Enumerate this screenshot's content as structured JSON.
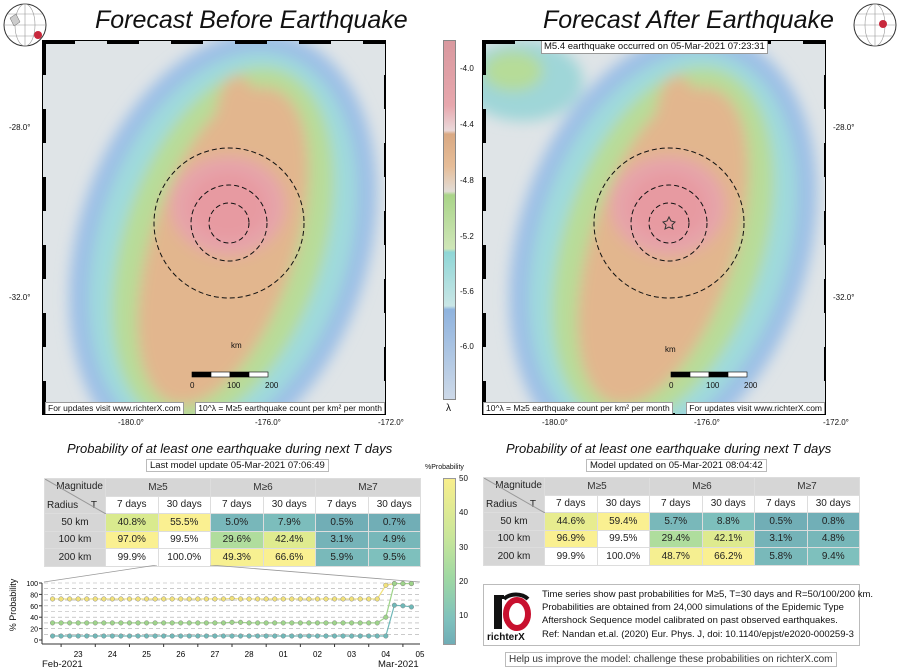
{
  "left_panel": {
    "title": "Forecast Before Earthquake",
    "updates_note": "For updates visit www.richterX.com",
    "units_note": "10^λ = M≥5 earthquake count per km² per month",
    "lat_labels": [
      "-28.0°",
      "-32.0°"
    ],
    "lon_labels": [
      "-180.0°",
      "-176.0°",
      "-172.0°"
    ],
    "scale_unit": "km",
    "scale_ticks": [
      "0",
      "100",
      "200"
    ]
  },
  "right_panel": {
    "title": "Forecast After Earthquake",
    "event_note": "M5.4 earthquake occurred on 05-Mar-2021 07:23:31",
    "updates_note": "For updates visit www.richterX.com",
    "units_note": "10^λ = M≥5 earthquake count per km² per month",
    "lat_labels": [
      "-28.0°",
      "-32.0°"
    ],
    "lon_labels": [
      "-180.0°",
      "-176.0°",
      "-172.0°"
    ],
    "scale_unit": "km",
    "scale_ticks": [
      "0",
      "100",
      "200"
    ]
  },
  "map_colorbar": {
    "ticks": [
      "-4.0",
      "-4.4",
      "-4.8",
      "-5.2",
      "-5.6",
      "-6.0"
    ],
    "label": "λ"
  },
  "prob_colorbar": {
    "label": "%Probability",
    "ticks": [
      "50",
      "40",
      "30",
      "20",
      "10"
    ]
  },
  "left_table": {
    "title": "Probability of at least one earthquake during next T days",
    "update": "Last model update 05-Mar-2021 07:06:49",
    "corner_top": "Magnitude",
    "corner_left": "Radius",
    "corner_right": "T",
    "magnitudes": [
      "M≥5",
      "M≥6",
      "M≥7"
    ],
    "periods": [
      "7 days",
      "30 days",
      "7 days",
      "30 days",
      "7 days",
      "30 days"
    ],
    "rows": [
      {
        "radius": "50 km",
        "values": [
          "40.8%",
          "55.5%",
          "5.0%",
          "7.9%",
          "0.5%",
          "0.7%"
        ]
      },
      {
        "radius": "100 km",
        "values": [
          "97.0%",
          "99.5%",
          "29.6%",
          "42.4%",
          "3.1%",
          "4.9%"
        ]
      },
      {
        "radius": "200 km",
        "values": [
          "99.9%",
          "100.0%",
          "49.3%",
          "66.6%",
          "5.9%",
          "9.5%"
        ]
      }
    ]
  },
  "right_table": {
    "title": "Probability of at least one earthquake during next T days",
    "update": "Model updated on 05-Mar-2021 08:04:42",
    "corner_top": "Magnitude",
    "corner_left": "Radius",
    "corner_right": "T",
    "magnitudes": [
      "M≥5",
      "M≥6",
      "M≥7"
    ],
    "periods": [
      "7 days",
      "30 days",
      "7 days",
      "30 days",
      "7 days",
      "30 days"
    ],
    "rows": [
      {
        "radius": "50 km",
        "values": [
          "44.6%",
          "59.4%",
          "5.7%",
          "8.8%",
          "0.5%",
          "0.8%"
        ]
      },
      {
        "radius": "100 km",
        "values": [
          "96.9%",
          "99.5%",
          "29.4%",
          "42.1%",
          "3.1%",
          "4.8%"
        ]
      },
      {
        "radius": "200 km",
        "values": [
          "99.9%",
          "100.0%",
          "48.7%",
          "66.2%",
          "5.8%",
          "9.4%"
        ]
      }
    ]
  },
  "chart_data": {
    "type": "line",
    "ylabel": "% Probability",
    "ylim": [
      0,
      100
    ],
    "yticks": [
      "0",
      "20",
      "40",
      "60",
      "80",
      "100"
    ],
    "xticks": [
      "23",
      "24",
      "25",
      "26",
      "27",
      "28",
      "01",
      "02",
      "03",
      "04",
      "05"
    ],
    "xlabel_left": "Feb-2021",
    "xlabel_right": "Mar-2021",
    "grid": true,
    "x": [
      "2021-02-22T18",
      "2021-02-23T00",
      "2021-02-23T06",
      "2021-02-23T12",
      "2021-02-23T18",
      "2021-02-24T00",
      "2021-02-24T06",
      "2021-02-24T12",
      "2021-02-24T18",
      "2021-02-25T00",
      "2021-02-25T06",
      "2021-02-25T12",
      "2021-02-25T18",
      "2021-02-26T00",
      "2021-02-26T06",
      "2021-02-26T12",
      "2021-02-26T18",
      "2021-02-27T00",
      "2021-02-27T06",
      "2021-02-27T12",
      "2021-02-27T18",
      "2021-02-28T00",
      "2021-02-28T06",
      "2021-02-28T12",
      "2021-02-28T18",
      "2021-03-01T00",
      "2021-03-01T06",
      "2021-03-01T12",
      "2021-03-01T18",
      "2021-03-02T00",
      "2021-03-02T06",
      "2021-03-02T12",
      "2021-03-02T18",
      "2021-03-03T00",
      "2021-03-03T06",
      "2021-03-03T12",
      "2021-03-03T18",
      "2021-03-04T00",
      "2021-03-04T06",
      "2021-03-04T12",
      "2021-03-04T18",
      "2021-03-05T00",
      "2021-03-05T06"
    ],
    "series": [
      {
        "color": "#f2e27a",
        "values": [
          72,
          72,
          72,
          72,
          72,
          72,
          72,
          72,
          72,
          72,
          72,
          72,
          72,
          72,
          72,
          72,
          72,
          72,
          72,
          72,
          72,
          73,
          72,
          72,
          72,
          72,
          72,
          72,
          72,
          72,
          72,
          72,
          72,
          72,
          72,
          72,
          72,
          72,
          72,
          96,
          99,
          99,
          99
        ]
      },
      {
        "color": "#9ed48a",
        "values": [
          30,
          30,
          30,
          30,
          30,
          30,
          30,
          30,
          30,
          30,
          30,
          30,
          30,
          30,
          30,
          30,
          30,
          30,
          30,
          30,
          30,
          31,
          31,
          30,
          30,
          30,
          30,
          30,
          30,
          30,
          30,
          30,
          30,
          30,
          30,
          30,
          30,
          30,
          30,
          40,
          99,
          99,
          99
        ]
      },
      {
        "color": "#6fb8b8",
        "values": [
          7,
          7,
          7,
          7,
          7,
          7,
          7,
          7,
          7,
          7,
          7,
          7,
          7,
          7,
          7,
          7,
          7,
          7,
          7,
          7,
          7,
          7,
          7,
          7,
          7,
          7,
          7,
          7,
          7,
          7,
          7,
          7,
          7,
          7,
          7,
          7,
          7,
          7,
          7,
          7,
          61,
          60,
          58
        ]
      }
    ]
  },
  "info": {
    "logo_text": "richterX",
    "lines": [
      "Time series show past probabilities for M≥5, T=30 days and R=50/100/200 km.",
      "Probabilities are obtained from 24,000 simulations of the Epidemic Type",
      "Aftershock Sequence model calibrated on past observed earthquakes.",
      "Ref: Nandan et.al. (2020) Eur. Phys. J, doi: 10.1140/epjst/e2020-000259-3"
    ]
  },
  "help_text": "Help us improve the model: challenge these probabilities on richterX.com"
}
